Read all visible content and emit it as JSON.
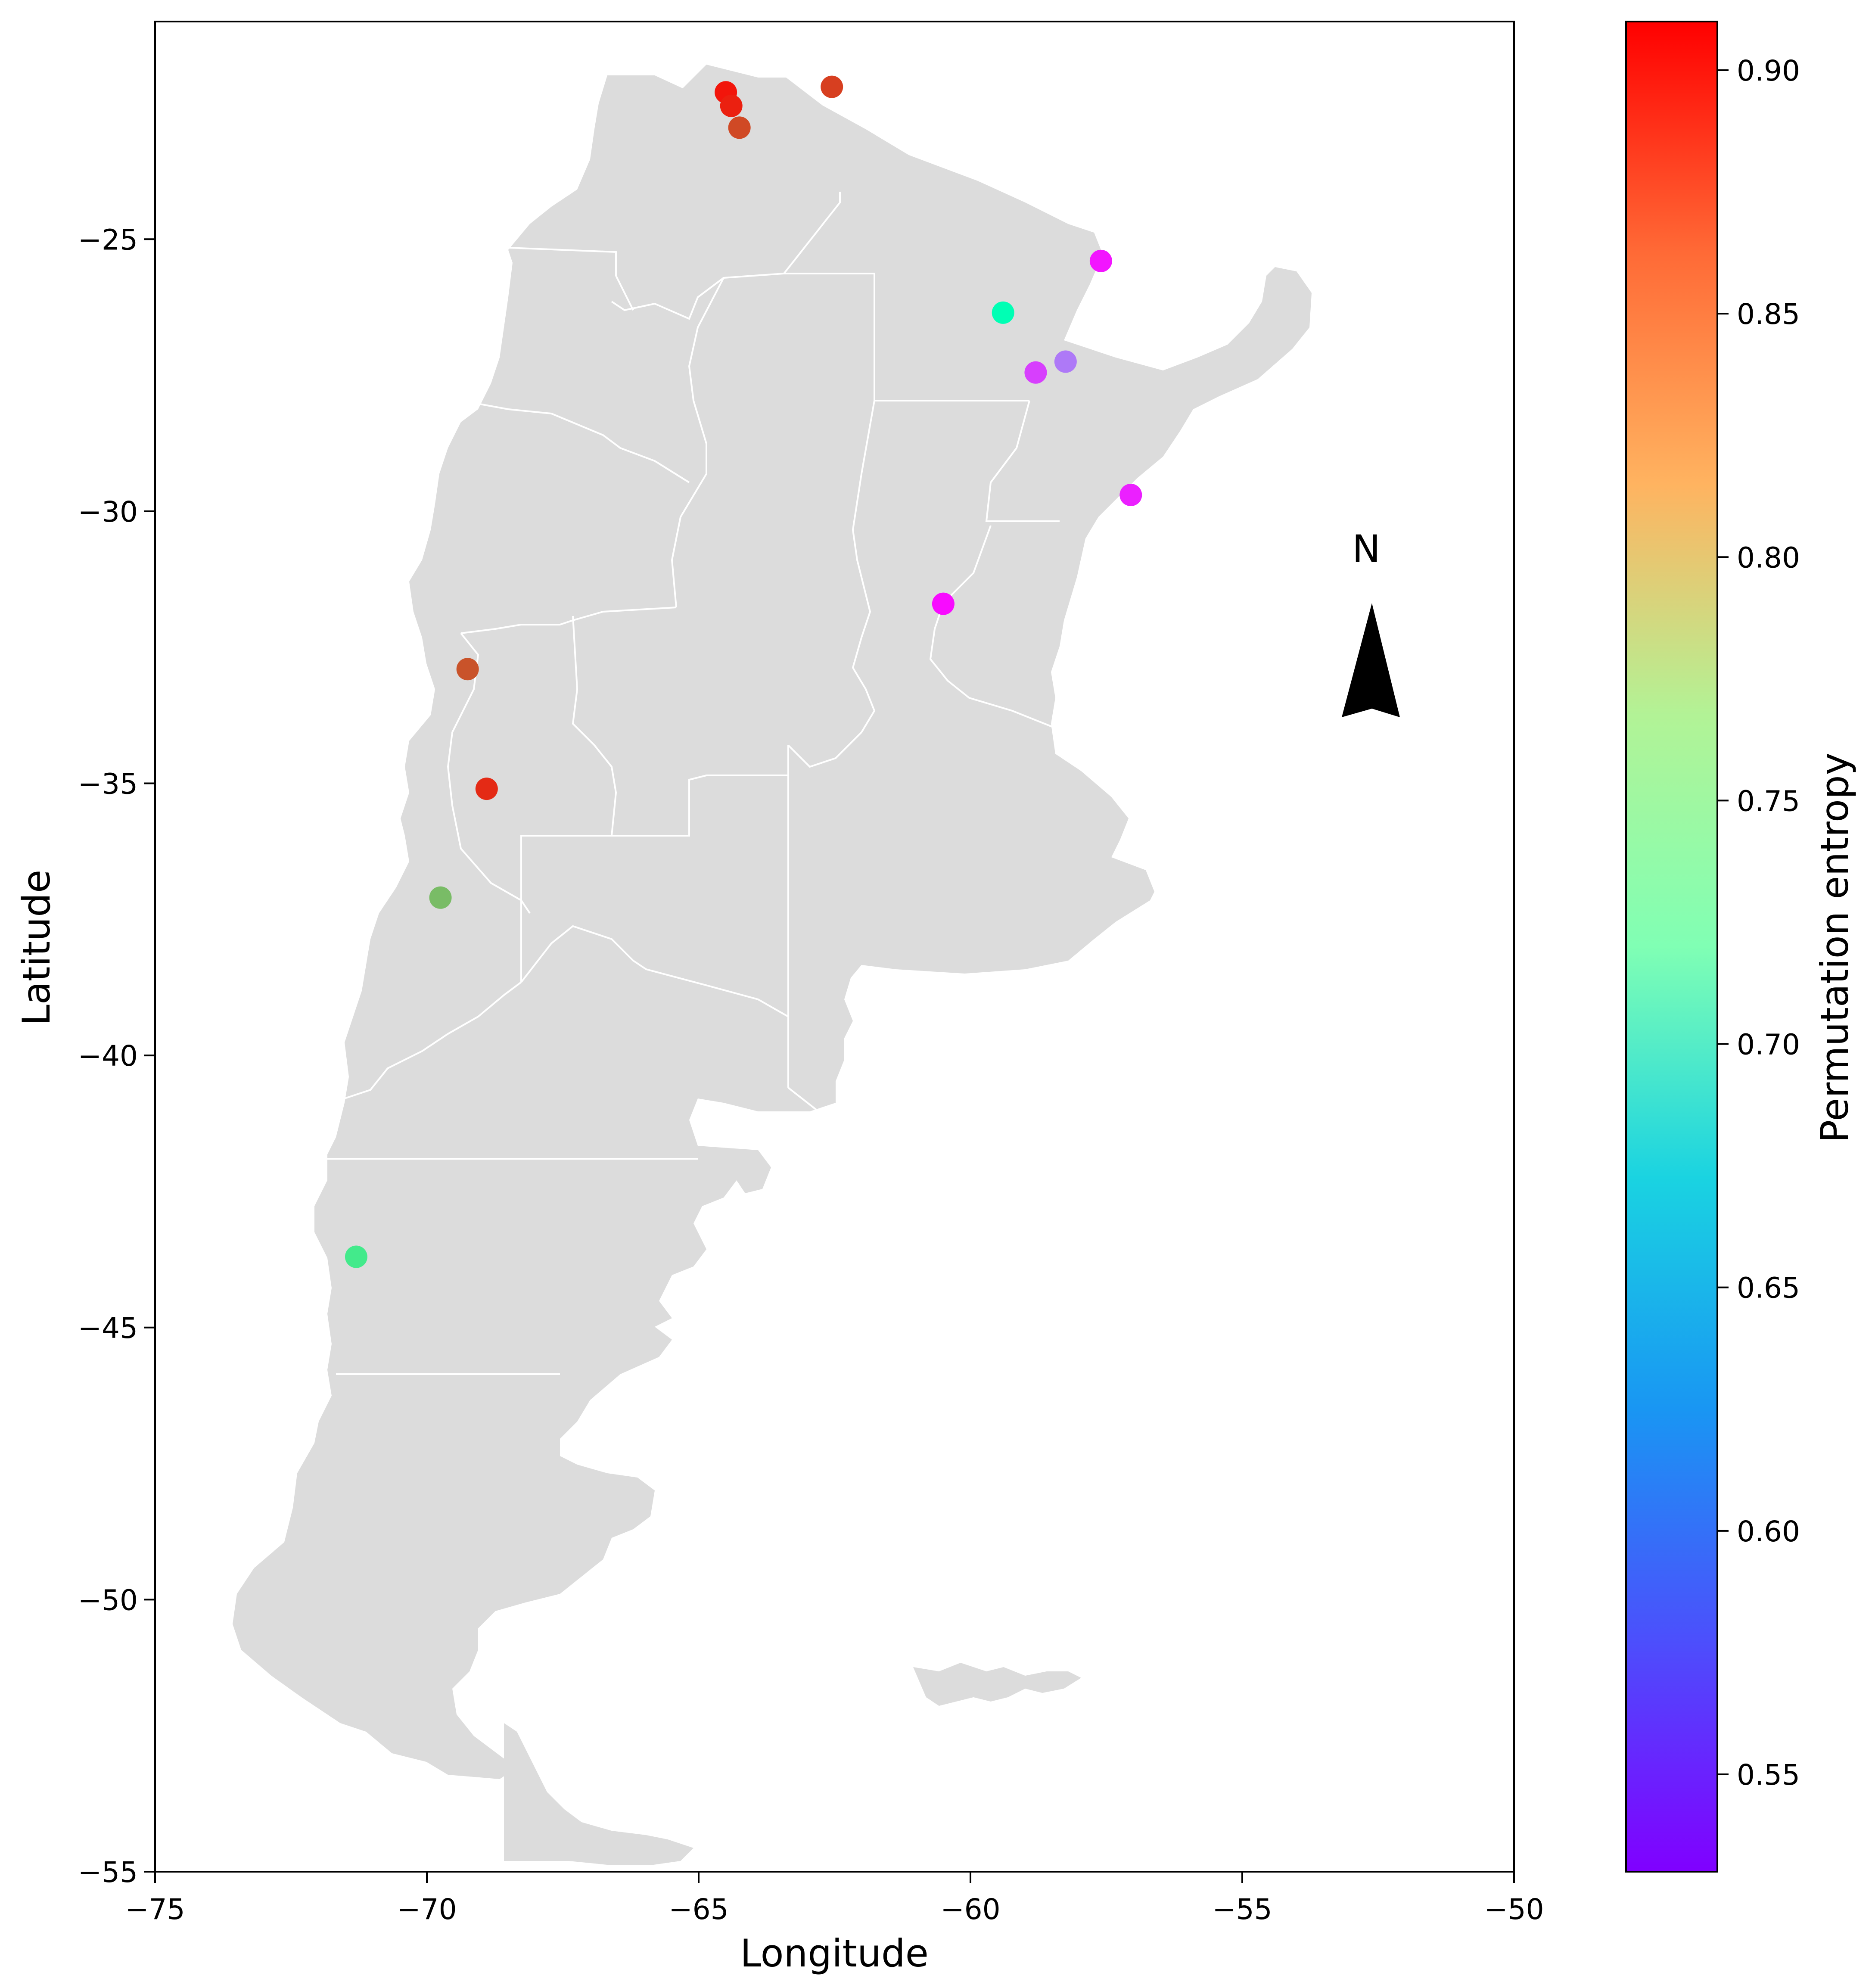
{
  "chart_data": {
    "type": "scatter",
    "subtype": "map",
    "xlabel": "Longitude",
    "ylabel": "Latitude",
    "xlim": [
      -75,
      -50
    ],
    "ylim": [
      -55,
      -21
    ],
    "x_ticks": [
      -75,
      -70,
      -65,
      -60,
      -55,
      -50
    ],
    "y_ticks": [
      -55,
      -50,
      -45,
      -40,
      -35,
      -30,
      -25
    ],
    "x_tick_labels": [
      "−75",
      "−70",
      "−65",
      "−60",
      "−55",
      "−50"
    ],
    "y_tick_labels": [
      "−55",
      "−50",
      "−45",
      "−40",
      "−35",
      "−30",
      "−25"
    ],
    "grid": false,
    "basemap": "Argentina provinces (light grey fill, white borders)",
    "north_arrow": {
      "label": "N",
      "placement": "right-center"
    },
    "colormap": "rainbow",
    "colorbar": {
      "label": "Permutation entropy",
      "range": [
        0.53,
        0.91
      ],
      "ticks": [
        0.55,
        0.6,
        0.65,
        0.7,
        0.75,
        0.8,
        0.85,
        0.9
      ],
      "tick_labels": [
        "0.55",
        "0.60",
        "0.65",
        "0.70",
        "0.75",
        "0.80",
        "0.85",
        "0.90"
      ]
    },
    "points": [
      {
        "lon": -64.5,
        "lat": -22.3,
        "value": 0.9
      },
      {
        "lon": -64.4,
        "lat": -22.55,
        "value": 0.895
      },
      {
        "lon": -64.25,
        "lat": -22.95,
        "value": 0.875
      },
      {
        "lon": -62.55,
        "lat": -22.2,
        "value": 0.88
      },
      {
        "lon": -57.6,
        "lat": -25.4,
        "value": 0.54
      },
      {
        "lon": -59.4,
        "lat": -26.35,
        "value": 0.72
      },
      {
        "lon": -58.25,
        "lat": -27.25,
        "value": 0.59
      },
      {
        "lon": -58.8,
        "lat": -27.45,
        "value": 0.56
      },
      {
        "lon": -57.05,
        "lat": -29.7,
        "value": 0.545
      },
      {
        "lon": -60.5,
        "lat": -31.7,
        "value": 0.535
      },
      {
        "lon": -69.25,
        "lat": -32.9,
        "value": 0.87
      },
      {
        "lon": -68.9,
        "lat": -35.1,
        "value": 0.89
      },
      {
        "lon": -69.75,
        "lat": -37.1,
        "value": 0.81
      },
      {
        "lon": -71.3,
        "lat": -43.7,
        "value": 0.77
      }
    ]
  }
}
